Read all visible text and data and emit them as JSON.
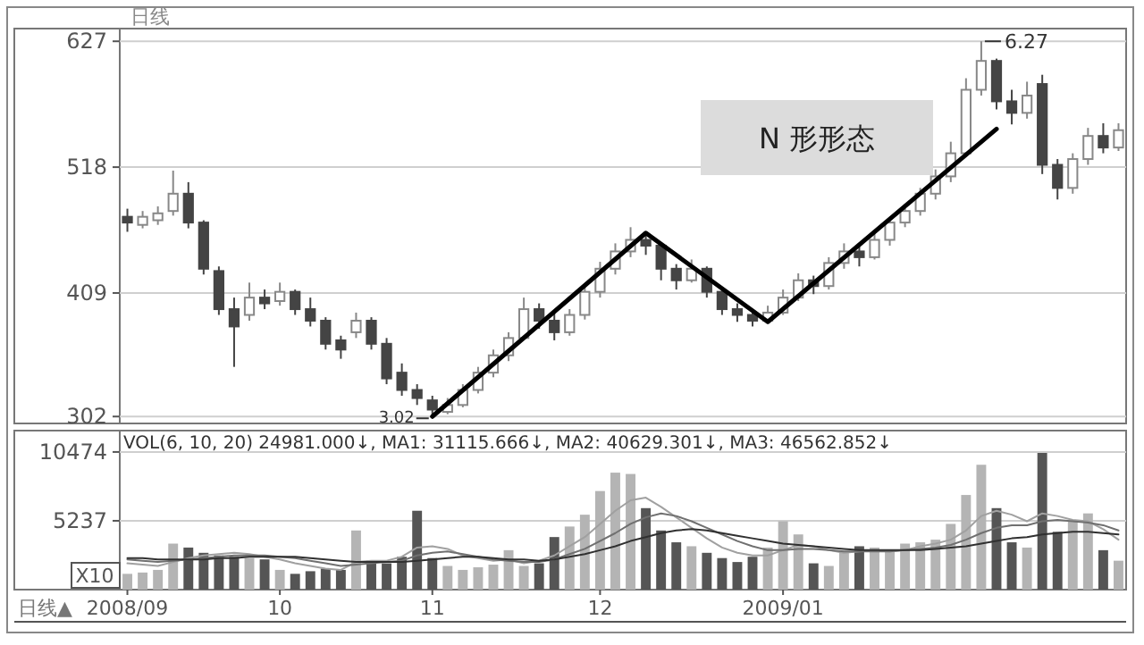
{
  "chart_data": [
    {
      "type": "candlestick",
      "title": "日线",
      "categories": [
        null,
        null,
        null,
        null,
        null,
        null,
        null,
        null,
        null,
        null,
        null,
        null,
        null,
        null,
        null,
        null,
        null,
        null,
        null,
        null,
        null,
        null,
        null,
        null,
        null,
        null,
        null,
        null,
        null,
        null,
        null,
        null,
        null,
        null,
        null,
        null,
        null,
        null,
        null,
        null,
        null,
        null,
        null,
        null,
        null,
        null,
        null,
        null,
        null,
        null,
        null,
        null,
        null,
        null,
        null,
        null,
        null,
        null,
        null,
        null,
        null,
        null,
        null,
        null,
        null,
        null
      ],
      "ohlc": [
        [
          475,
          482,
          462,
          470
        ],
        [
          468,
          480,
          465,
          475
        ],
        [
          472,
          484,
          468,
          478
        ],
        [
          480,
          515,
          476,
          495
        ],
        [
          495,
          505,
          465,
          470
        ],
        [
          470,
          472,
          425,
          430
        ],
        [
          428,
          432,
          390,
          395
        ],
        [
          395,
          405,
          345,
          380
        ],
        [
          390,
          418,
          385,
          405
        ],
        [
          405,
          412,
          395,
          400
        ],
        [
          402,
          418,
          398,
          410
        ],
        [
          410,
          412,
          390,
          395
        ],
        [
          395,
          405,
          380,
          385
        ],
        [
          385,
          388,
          360,
          365
        ],
        [
          368,
          372,
          352,
          360
        ],
        [
          375,
          392,
          370,
          385
        ],
        [
          385,
          388,
          360,
          365
        ],
        [
          365,
          370,
          330,
          335
        ],
        [
          340,
          348,
          320,
          325
        ],
        [
          325,
          330,
          312,
          318
        ],
        [
          316,
          320,
          302,
          308
        ],
        [
          306,
          318,
          304,
          312
        ],
        [
          312,
          330,
          310,
          325
        ],
        [
          325,
          345,
          322,
          340
        ],
        [
          340,
          360,
          336,
          355
        ],
        [
          355,
          375,
          350,
          370
        ],
        [
          370,
          405,
          368,
          395
        ],
        [
          395,
          400,
          378,
          385
        ],
        [
          385,
          392,
          368,
          375
        ],
        [
          375,
          395,
          372,
          390
        ],
        [
          390,
          415,
          386,
          410
        ],
        [
          410,
          436,
          405,
          430
        ],
        [
          430,
          452,
          425,
          445
        ],
        [
          445,
          466,
          440,
          455
        ],
        [
          455,
          460,
          442,
          450
        ],
        [
          450,
          452,
          420,
          430
        ],
        [
          430,
          434,
          412,
          420
        ],
        [
          420,
          438,
          418,
          430
        ],
        [
          430,
          432,
          405,
          410
        ],
        [
          410,
          414,
          390,
          395
        ],
        [
          395,
          400,
          384,
          390
        ],
        [
          390,
          394,
          380,
          385
        ],
        [
          385,
          398,
          383,
          392
        ],
        [
          392,
          412,
          390,
          405
        ],
        [
          405,
          426,
          402,
          420
        ],
        [
          420,
          424,
          408,
          415
        ],
        [
          415,
          440,
          412,
          435
        ],
        [
          435,
          452,
          430,
          445
        ],
        [
          445,
          450,
          432,
          440
        ],
        [
          440,
          460,
          438,
          455
        ],
        [
          455,
          474,
          450,
          470
        ],
        [
          470,
          486,
          466,
          480
        ],
        [
          480,
          500,
          476,
          495
        ],
        [
          495,
          516,
          490,
          510
        ],
        [
          510,
          540,
          505,
          530
        ],
        [
          530,
          595,
          528,
          585
        ],
        [
          585,
          627,
          580,
          610
        ],
        [
          610,
          612,
          568,
          575
        ],
        [
          575,
          585,
          555,
          565
        ],
        [
          565,
          592,
          560,
          580
        ],
        [
          590,
          598,
          512,
          520
        ],
        [
          520,
          525,
          490,
          500
        ],
        [
          500,
          530,
          495,
          525
        ],
        [
          525,
          552,
          520,
          545
        ],
        [
          545,
          556,
          530,
          535
        ],
        [
          535,
          556,
          532,
          550
        ]
      ],
      "series": [
        {
          "type": "line",
          "color": "#000000",
          "values": [
            null,
            null,
            null,
            null,
            null,
            null,
            null,
            null,
            null,
            null,
            null,
            null,
            null,
            null,
            null,
            null,
            null,
            null,
            null,
            null,
            302,
            null,
            null,
            null,
            null,
            null,
            null,
            null,
            null,
            null,
            null,
            null,
            null,
            null,
            461,
            null,
            null,
            null,
            null,
            null,
            null,
            null,
            384,
            null,
            null,
            null,
            null,
            null,
            null,
            null,
            null,
            null,
            null,
            null,
            null,
            null,
            null,
            551,
            null,
            null,
            null,
            null,
            null,
            null,
            null,
            null
          ]
        }
      ],
      "ylim": [
        296,
        638
      ],
      "yticks": [
        302,
        409,
        518,
        627
      ],
      "grid": "y",
      "tick_labels": "y",
      "annotations": [
        "3.02",
        "6.27",
        "N 形形态"
      ]
    },
    {
      "type": "bar",
      "categories": [
        "2008/09",
        null,
        null,
        null,
        null,
        null,
        null,
        null,
        null,
        null,
        "10",
        null,
        null,
        null,
        null,
        null,
        null,
        null,
        null,
        null,
        "11",
        null,
        null,
        null,
        null,
        null,
        null,
        null,
        null,
        null,
        null,
        "12",
        null,
        null,
        null,
        null,
        null,
        null,
        null,
        null,
        null,
        null,
        null,
        "2009/01",
        null,
        null,
        null,
        null,
        null,
        null,
        null,
        null,
        null,
        null,
        null,
        null,
        null,
        null,
        null,
        null,
        null,
        null,
        null,
        null,
        null,
        null
      ],
      "series": [
        {
          "type": "bar",
          "values": [
            1200,
            1300,
            1500,
            3500,
            3200,
            2800,
            2600,
            2500,
            2400,
            2300,
            1500,
            1200,
            1400,
            1600,
            1500,
            4500,
            2200,
            2000,
            2500,
            6000,
            2400,
            1800,
            1500,
            1700,
            1900,
            3000,
            1800,
            2000,
            4000,
            4800,
            5700,
            7500,
            8900,
            8800,
            6200,
            4500,
            3600,
            3300,
            2800,
            2400,
            2100,
            2500,
            3200,
            5200,
            4200,
            2000,
            1800,
            2800,
            3300,
            3200,
            2900,
            3500,
            3600,
            3800,
            5000,
            7200,
            9500,
            6200,
            3600,
            3200,
            10400,
            4400,
            5200,
            5800,
            3000,
            2200
          ],
          "colors": [
            "#b4b4b4",
            "#b4b4b4",
            "#b4b4b4",
            "#b4b4b4",
            "#555555",
            "#555555",
            "#555555",
            "#555555",
            "#b4b4b4",
            "#555555",
            "#b4b4b4",
            "#555555",
            "#555555",
            "#555555",
            "#555555",
            "#b4b4b4",
            "#555555",
            "#555555",
            "#555555",
            "#555555",
            "#555555",
            "#b4b4b4",
            "#b4b4b4",
            "#b4b4b4",
            "#b4b4b4",
            "#b4b4b4",
            "#b4b4b4",
            "#555555",
            "#555555",
            "#b4b4b4",
            "#b4b4b4",
            "#b4b4b4",
            "#b4b4b4",
            "#b4b4b4",
            "#555555",
            "#555555",
            "#555555",
            "#b4b4b4",
            "#555555",
            "#555555",
            "#555555",
            "#555555",
            "#b4b4b4",
            "#b4b4b4",
            "#b4b4b4",
            "#555555",
            "#b4b4b4",
            "#b4b4b4",
            "#555555",
            "#b4b4b4",
            "#b4b4b4",
            "#b4b4b4",
            "#b4b4b4",
            "#b4b4b4",
            "#b4b4b4",
            "#b4b4b4",
            "#b4b4b4",
            "#555555",
            "#555555",
            "#b4b4b4",
            "#555555",
            "#555555",
            "#b4b4b4",
            "#b4b4b4",
            "#555555",
            "#b4b4b4"
          ]
        },
        {
          "type": "line",
          "color": "#a0a0a0",
          "values": [
            2000,
            1900,
            1800,
            2100,
            2400,
            2600,
            2700,
            2800,
            2700,
            2500,
            2300,
            2000,
            1800,
            1600,
            1500,
            2100,
            2200,
            2200,
            2500,
            3200,
            3300,
            3100,
            2600,
            2400,
            2200,
            2300,
            2000,
            2200,
            2600,
            3300,
            4000,
            5000,
            6000,
            6800,
            7000,
            6300,
            5500,
            4700,
            3900,
            3200,
            2800,
            2600,
            2600,
            3000,
            3400,
            3300,
            3000,
            2800,
            2900,
            3000,
            2900,
            3000,
            3300,
            3500,
            3800,
            4500,
            5600,
            6000,
            5700,
            5200,
            5800,
            5600,
            5300,
            5200,
            4600,
            3800
          ]
        },
        {
          "type": "line",
          "color": "#707070",
          "values": [
            2300,
            2200,
            2100,
            2200,
            2300,
            2400,
            2500,
            2600,
            2600,
            2600,
            2500,
            2400,
            2200,
            2000,
            1800,
            1900,
            2000,
            2100,
            2200,
            2600,
            2800,
            2900,
            2700,
            2500,
            2300,
            2200,
            2100,
            2100,
            2300,
            2700,
            3100,
            3700,
            4300,
            5000,
            5500,
            5800,
            5600,
            5200,
            4700,
            4200,
            3700,
            3300,
            3000,
            3000,
            3100,
            3100,
            3000,
            2900,
            2900,
            2900,
            2900,
            3000,
            3100,
            3200,
            3400,
            3800,
            4300,
            4700,
            4900,
            4900,
            5200,
            5300,
            5200,
            5100,
            4900,
            4500
          ]
        },
        {
          "type": "line",
          "color": "#303030",
          "values": [
            2400,
            2400,
            2300,
            2300,
            2300,
            2300,
            2400,
            2400,
            2500,
            2500,
            2500,
            2500,
            2400,
            2300,
            2200,
            2100,
            2100,
            2100,
            2100,
            2200,
            2300,
            2400,
            2500,
            2500,
            2400,
            2300,
            2300,
            2200,
            2300,
            2500,
            2700,
            3000,
            3300,
            3700,
            4000,
            4300,
            4500,
            4600,
            4500,
            4300,
            4100,
            3900,
            3700,
            3500,
            3400,
            3300,
            3200,
            3100,
            3000,
            3000,
            3000,
            3000,
            3000,
            3100,
            3200,
            3300,
            3500,
            3700,
            3900,
            4000,
            4200,
            4300,
            4400,
            4400,
            4300,
            4200
          ]
        }
      ],
      "ylim": [
        0,
        12100
      ],
      "yticks": [
        5237,
        10474
      ],
      "grid": "y",
      "annotations": [
        "VOL(6, 10, 20) 24981.000↓, MA1: 31115.666↓, MA2: 40629.301↓, MA3: 46562.852↓",
        "X10",
        "日线▲"
      ]
    }
  ]
}
